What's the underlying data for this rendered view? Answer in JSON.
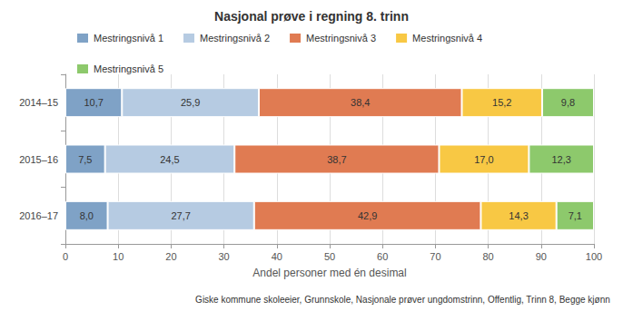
{
  "chart_data": {
    "type": "bar",
    "title": "Nasjonal prøve i regning 8. trinn",
    "x_label": "Andel personer med én desimal",
    "caption": "Giske kommune skoleeier, Grunnskole, Nasjonale prøver ungdomstrinn, Offentlig, Trinn 8, Begge kjønn",
    "orientation": "horizontal",
    "stacked": true,
    "data_labels": true,
    "grid": true,
    "legend": "top",
    "categories": [
      "2014–15",
      "2015–16",
      "2016–17"
    ],
    "series": [
      {
        "name": "Mestringsnivå 1",
        "color": "#7fa2c6",
        "values": [
          10.7,
          7.5,
          8.0
        ],
        "value_labels": [
          "10,7",
          "7,5",
          "8,0"
        ]
      },
      {
        "name": "Mestringsnivå 2",
        "color": "#b6cbe2",
        "values": [
          25.9,
          24.5,
          27.7
        ],
        "value_labels": [
          "25,9",
          "24,5",
          "27,7"
        ]
      },
      {
        "name": "Mestringsnivå 3",
        "color": "#e07b52",
        "values": [
          38.4,
          38.7,
          42.9
        ],
        "value_labels": [
          "38,4",
          "38,7",
          "42,9"
        ]
      },
      {
        "name": "Mestringsnivå 4",
        "color": "#f8c844",
        "values": [
          15.2,
          17.0,
          14.3
        ],
        "value_labels": [
          "15,2",
          "17,0",
          "14,3"
        ]
      },
      {
        "name": "Mestringsnivå 5",
        "color": "#8dc96c",
        "values": [
          9.8,
          12.3,
          7.1
        ],
        "value_labels": [
          "9,8",
          "12,3",
          "7,1"
        ]
      }
    ],
    "xlim": [
      0,
      100
    ],
    "xticks": [
      0,
      10,
      20,
      30,
      40,
      50,
      60,
      70,
      80,
      90,
      100
    ]
  }
}
